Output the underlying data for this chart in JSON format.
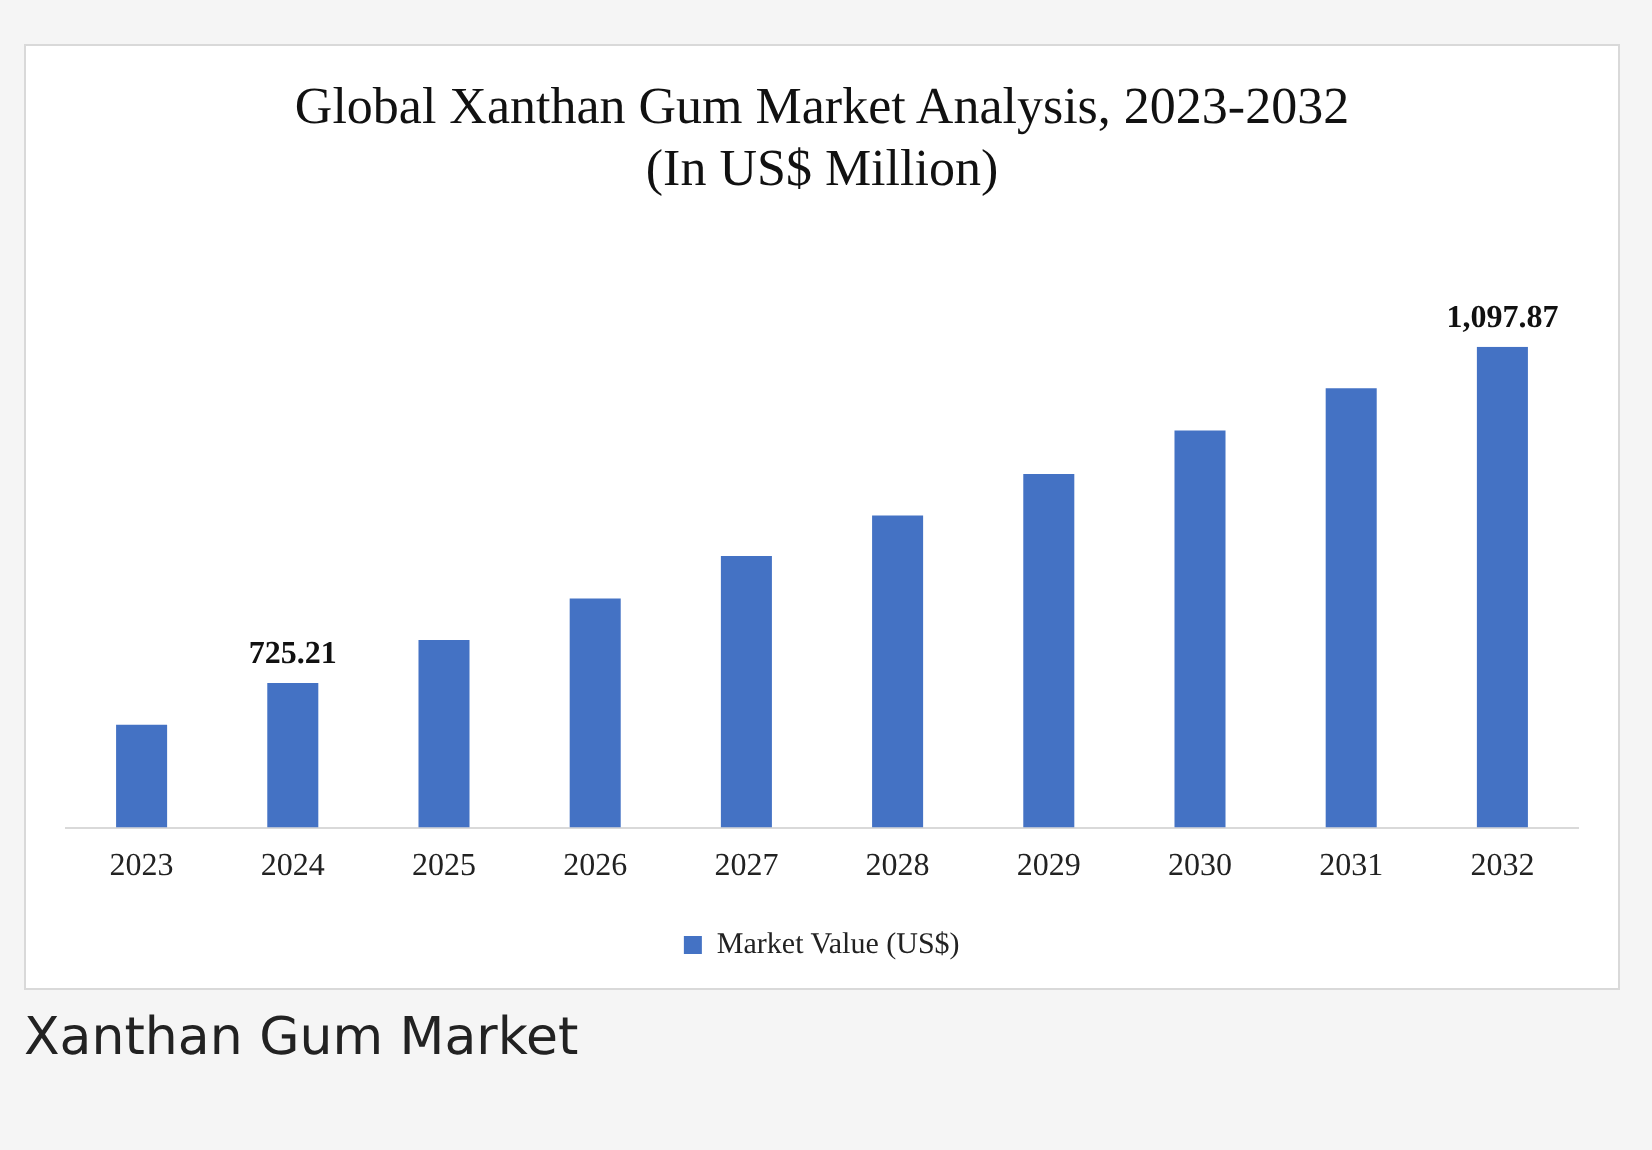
{
  "chart_data": {
    "type": "bar",
    "title": "Global Xanthan Gum Market Analysis, 2023-2032",
    "subtitle": "(In US$ Million)",
    "categories": [
      "2023",
      "2024",
      "2025",
      "2026",
      "2027",
      "2028",
      "2029",
      "2030",
      "2031",
      "2032"
    ],
    "series": [
      {
        "name": "Market Value (US$)",
        "color": "#4472c4",
        "values": [
          679,
          725.21,
          773,
          819,
          866,
          911,
          957,
          1005,
          1052,
          1097.87
        ],
        "value_labels": [
          null,
          "725.21",
          null,
          null,
          null,
          null,
          null,
          null,
          null,
          "1,097.87"
        ]
      }
    ],
    "ylim": [
      565,
      1097.87
    ],
    "grid": false,
    "legend": "bottom",
    "tick_labels": "x",
    "annotations": [
      "Xanthan Gum Market"
    ]
  }
}
